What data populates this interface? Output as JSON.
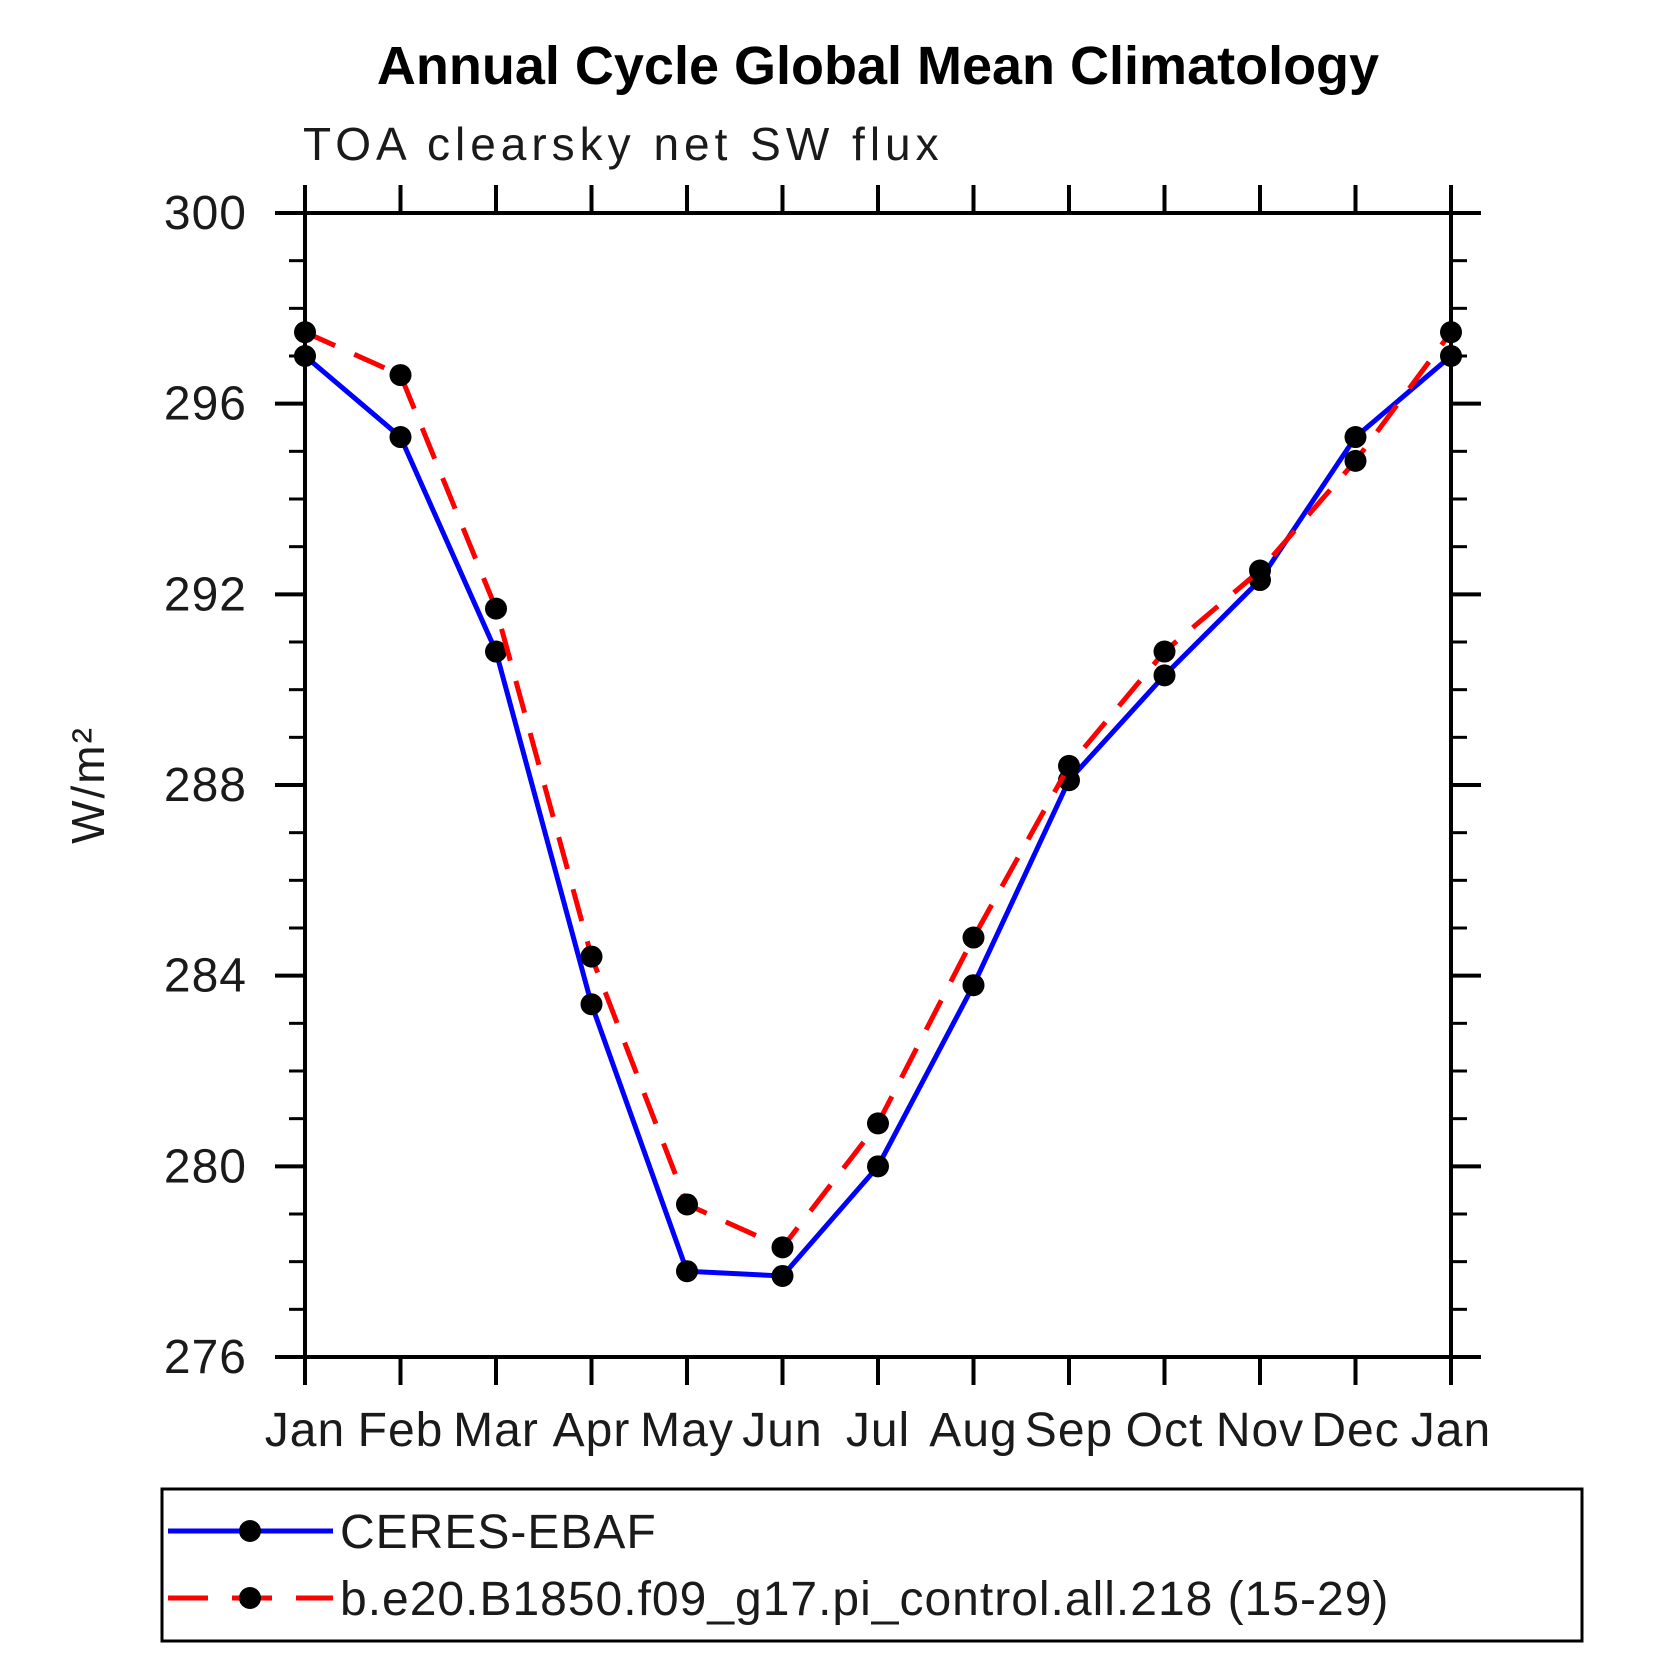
{
  "chart_data": {
    "type": "line",
    "title": "Annual Cycle Global Mean Climatology",
    "subtitle": "TOA clearsky net SW flux",
    "ylabel": "W/m²",
    "xlabel": "",
    "x_tick_labels": [
      "Jan",
      "Feb",
      "Mar",
      "Apr",
      "May",
      "Jun",
      "Jul",
      "Aug",
      "Sep",
      "Oct",
      "Nov",
      "Dec",
      "Jan"
    ],
    "ylim": [
      276,
      300
    ],
    "y_major_ticks": [
      276,
      280,
      284,
      288,
      292,
      296,
      300
    ],
    "y_minor_step": 1,
    "grid": "off",
    "legend_position": "bottom",
    "marker_color": "#000000",
    "series": [
      {
        "name": "CERES-EBAF",
        "color": "#0000ff",
        "line_style": "solid",
        "marker": "circle",
        "values": [
          297.0,
          295.3,
          290.8,
          283.4,
          277.8,
          277.7,
          280.0,
          283.8,
          288.1,
          290.3,
          292.3,
          295.3,
          297.0
        ]
      },
      {
        "name": "b.e20.B1850.f09_g17.pi_control.all.218 (15-29)",
        "color": "#ff0000",
        "line_style": "dashed",
        "marker": "circle",
        "values": [
          297.5,
          296.6,
          291.7,
          284.4,
          279.2,
          278.3,
          280.9,
          284.8,
          288.4,
          290.8,
          292.5,
          294.8,
          297.5
        ]
      }
    ]
  }
}
